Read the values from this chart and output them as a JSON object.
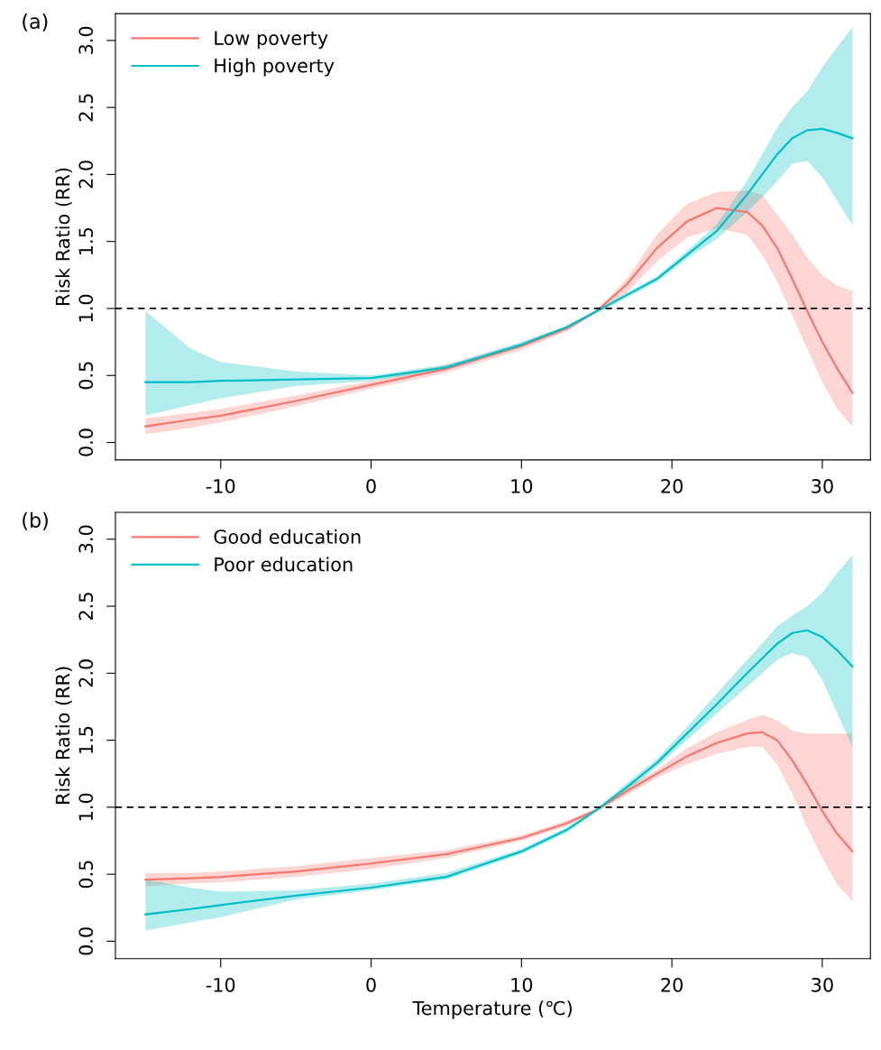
{
  "chart_data": [
    {
      "type": "line",
      "title": "(a)",
      "ylabel": "Risk Ratio (RR)",
      "x": [
        -15,
        -12,
        -10,
        -5,
        0,
        5,
        10,
        13,
        15,
        17,
        19,
        21,
        23,
        25,
        26,
        27,
        28,
        29,
        30,
        31,
        32
      ],
      "series": [
        {
          "name": "Low poverty",
          "color": "#f8766d",
          "values": [
            0.12,
            0.17,
            0.2,
            0.31,
            0.43,
            0.55,
            0.72,
            0.85,
            0.98,
            1.18,
            1.45,
            1.65,
            1.75,
            1.72,
            1.62,
            1.45,
            1.22,
            0.98,
            0.75,
            0.55,
            0.37
          ],
          "lower": [
            0.06,
            0.11,
            0.15,
            0.27,
            0.4,
            0.52,
            0.69,
            0.83,
            0.97,
            1.12,
            1.35,
            1.53,
            1.6,
            1.55,
            1.4,
            1.2,
            0.95,
            0.7,
            0.45,
            0.25,
            0.12
          ],
          "upper": [
            0.18,
            0.22,
            0.25,
            0.35,
            0.46,
            0.58,
            0.74,
            0.87,
            0.99,
            1.22,
            1.55,
            1.78,
            1.87,
            1.88,
            1.85,
            1.7,
            1.55,
            1.38,
            1.25,
            1.17,
            1.13
          ]
        },
        {
          "name": "High poverty",
          "color": "#00bfc4",
          "values": [
            0.45,
            0.45,
            0.46,
            0.47,
            0.48,
            0.56,
            0.73,
            0.86,
            0.98,
            1.1,
            1.22,
            1.4,
            1.58,
            1.85,
            2.0,
            2.15,
            2.27,
            2.33,
            2.34,
            2.31,
            2.27
          ],
          "lower": [
            0.2,
            0.28,
            0.33,
            0.42,
            0.46,
            0.54,
            0.71,
            0.85,
            0.97,
            1.08,
            1.2,
            1.37,
            1.52,
            1.72,
            1.83,
            1.95,
            2.08,
            2.1,
            1.98,
            1.8,
            1.62
          ],
          "upper": [
            0.98,
            0.7,
            0.6,
            0.53,
            0.5,
            0.58,
            0.75,
            0.87,
            0.99,
            1.12,
            1.24,
            1.43,
            1.63,
            1.95,
            2.15,
            2.35,
            2.5,
            2.62,
            2.8,
            2.95,
            3.1
          ]
        }
      ],
      "xlim": [
        -17,
        33.2
      ],
      "xticks": [
        -10,
        0,
        10,
        20,
        30
      ],
      "ylim": [
        -0.13,
        3.2
      ],
      "yticks": [
        {
          "value": 0,
          "label": "0.0"
        },
        0.5,
        {
          "value": 1,
          "label": "1.0"
        },
        1.5,
        {
          "value": 2,
          "label": "2.0"
        },
        2.5,
        {
          "value": 3,
          "label": "3.0"
        }
      ],
      "ref_lines": [
        {
          "axis": "y",
          "value": 1.0,
          "color": "#000000",
          "line_style": "dashed"
        }
      ],
      "legend": "top left",
      "grid": false
    },
    {
      "type": "line",
      "title": "(b)",
      "ylabel": "Risk Ratio (RR)",
      "xlabel": "Temperature (℃)",
      "x": [
        -15,
        -12,
        -10,
        -5,
        0,
        5,
        10,
        13,
        15,
        17,
        19,
        21,
        23,
        25,
        26,
        27,
        28,
        29,
        30,
        31,
        32
      ],
      "series": [
        {
          "name": "Good education",
          "color": "#f8766d",
          "values": [
            0.46,
            0.47,
            0.48,
            0.52,
            0.58,
            0.65,
            0.77,
            0.88,
            0.98,
            1.12,
            1.25,
            1.38,
            1.48,
            1.55,
            1.56,
            1.5,
            1.35,
            1.17,
            0.97,
            0.8,
            0.67
          ],
          "lower": [
            0.41,
            0.43,
            0.44,
            0.48,
            0.54,
            0.62,
            0.75,
            0.86,
            0.97,
            1.09,
            1.22,
            1.32,
            1.4,
            1.45,
            1.45,
            1.32,
            1.1,
            0.85,
            0.62,
            0.42,
            0.3
          ],
          "upper": [
            0.51,
            0.51,
            0.52,
            0.56,
            0.62,
            0.68,
            0.79,
            0.9,
            0.99,
            1.15,
            1.28,
            1.44,
            1.56,
            1.65,
            1.69,
            1.65,
            1.57,
            1.55,
            1.55,
            1.55,
            1.55
          ]
        },
        {
          "name": "Poor education",
          "color": "#00bfc4",
          "values": [
            0.2,
            0.24,
            0.27,
            0.34,
            0.4,
            0.48,
            0.67,
            0.83,
            0.98,
            1.15,
            1.33,
            1.55,
            1.77,
            2.0,
            2.11,
            2.22,
            2.3,
            2.32,
            2.27,
            2.17,
            2.05
          ],
          "lower": [
            0.08,
            0.14,
            0.18,
            0.31,
            0.38,
            0.46,
            0.65,
            0.81,
            0.97,
            1.12,
            1.3,
            1.5,
            1.7,
            1.9,
            2.0,
            2.1,
            2.15,
            2.12,
            1.95,
            1.7,
            1.45
          ],
          "upper": [
            0.46,
            0.4,
            0.37,
            0.38,
            0.43,
            0.51,
            0.69,
            0.85,
            0.99,
            1.18,
            1.36,
            1.6,
            1.85,
            2.1,
            2.22,
            2.35,
            2.43,
            2.5,
            2.6,
            2.75,
            2.88
          ]
        }
      ],
      "xlim": [
        -17,
        33.2
      ],
      "xticks": [
        -10,
        0,
        10,
        20,
        30
      ],
      "ylim": [
        -0.13,
        3.2
      ],
      "yticks": [
        {
          "value": 0,
          "label": "0.0"
        },
        0.5,
        {
          "value": 1,
          "label": "1.0"
        },
        1.5,
        {
          "value": 2,
          "label": "2.0"
        },
        2.5,
        {
          "value": 3,
          "label": "3.0"
        }
      ],
      "ref_lines": [
        {
          "axis": "y",
          "value": 1.0,
          "color": "#000000",
          "line_style": "dashed"
        }
      ],
      "legend": "top left",
      "grid": false
    }
  ]
}
